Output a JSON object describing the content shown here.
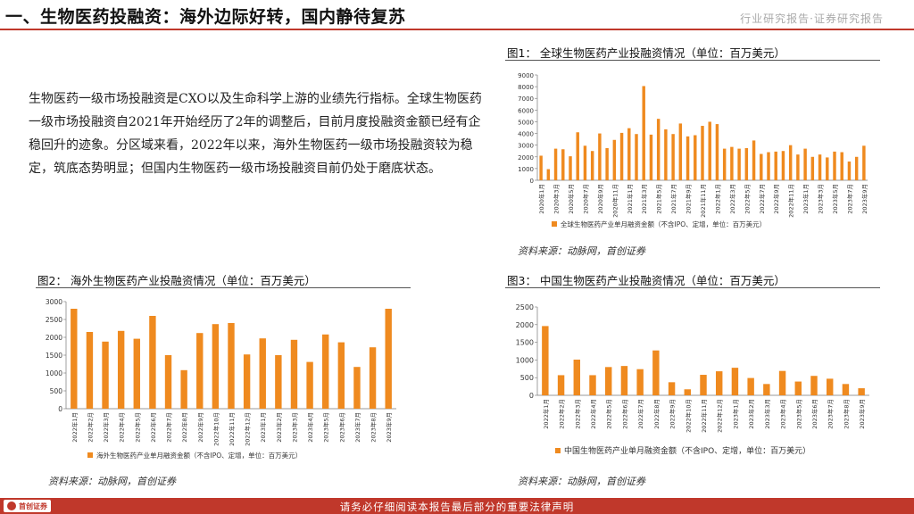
{
  "header": {
    "title": "一、生物医药投融资：海外边际好转，国内静待复苏",
    "right_label": "行业研究报告·证券研究报告"
  },
  "body_text": "生物医药一级市场投融资是CXO以及生命科学上游的业绩先行指标。全球生物医药一级市场投融资自2021年开始经历了2年的调整后，目前月度投融资金额已经有企稳回升的迹象。分区域来看，2022年以来，海外生物医药一级市场投融资较为稳定，筑底态势明显；但国内生物医药一级市场投融资目前仍处于磨底状态。",
  "figures": {
    "fig1": {
      "title": "图1：  全球生物医药产业投融资情况（单位：百万美元）",
      "source": "资料来源：动脉网，首创证券"
    },
    "fig2": {
      "title": "图2：  海外生物医药产业投融资情况（单位：百万美元）",
      "source": "资料来源：动脉网，首创证券"
    },
    "fig3": {
      "title": "图3：  中国生物医药产业投融资情况（单位：百万美元）",
      "source": "资料来源：动脉网，首创证券"
    }
  },
  "footer": {
    "disclaimer": "请务必仔细阅读本报告最后部分的重要法律声明",
    "logo_text": "首创证券"
  },
  "colors": {
    "accent": "#c0382b",
    "bar": "#ef8a1f"
  },
  "chart_data": [
    {
      "id": "fig1",
      "type": "bar",
      "title": "全球生物医药产业投融资情况（单位：百万美元）",
      "legend": "全球生物医药产业单月融资金额（不含IPO、定增，单位：百万美元）",
      "legend_position": "bottom",
      "ylim": [
        0,
        9000
      ],
      "yticks": [
        0,
        1000,
        2000,
        3000,
        4000,
        5000,
        6000,
        7000,
        8000,
        9000
      ],
      "tick_labels": [
        "2020年1月",
        "2020年3月",
        "2020年5月",
        "2020年7月",
        "2020年9月",
        "2020年11月",
        "2021年1月",
        "2021年3月",
        "2021年5月",
        "2021年7月",
        "2021年9月",
        "2021年11月",
        "2022年1月",
        "2022年3月",
        "2022年5月",
        "2022年7月",
        "2022年9月",
        "2022年11月",
        "2023年1月",
        "2023年3月",
        "2023年5月",
        "2023年7月",
        "2023年9月"
      ],
      "values": [
        2100,
        950,
        2700,
        2650,
        2050,
        4100,
        2950,
        2500,
        4000,
        2750,
        3450,
        4050,
        4450,
        3950,
        8050,
        3900,
        5250,
        4350,
        3950,
        4850,
        3750,
        3850,
        4650,
        5000,
        4800,
        2700,
        2850,
        2700,
        2750,
        3400,
        2250,
        2400,
        2450,
        2500,
        3000,
        2200,
        2700,
        2000,
        2200,
        1950,
        2450,
        2400,
        1600,
        2000,
        2950
      ]
    },
    {
      "id": "fig2",
      "type": "bar",
      "title": "海外生物医药产业投融资情况（单位：百万美元）",
      "legend": "海外生物医药产业单月融资金额（不含IPO、定增，单位：百万美元）",
      "legend_position": "bottom",
      "ylim": [
        0,
        3000
      ],
      "yticks": [
        0,
        500,
        1000,
        1500,
        2000,
        2500,
        3000
      ],
      "categories": [
        "2022年1月",
        "2022年2月",
        "2022年3月",
        "2022年4月",
        "2022年5月",
        "2022年6月",
        "2022年7月",
        "2022年8月",
        "2022年9月",
        "2022年10月",
        "2022年11月",
        "2022年12月",
        "2023年1月",
        "2023年2月",
        "2023年3月",
        "2023年4月",
        "2023年5月",
        "2023年6月",
        "2023年7月",
        "2023年8月",
        "2023年9月"
      ],
      "values": [
        2800,
        2150,
        1880,
        2180,
        1960,
        2600,
        1500,
        1080,
        2120,
        2370,
        2400,
        1520,
        1970,
        1500,
        1930,
        1310,
        2080,
        1860,
        1170,
        1720,
        2800
      ]
    },
    {
      "id": "fig3",
      "type": "bar",
      "title": "中国生物医药产业投融资情况（单位：百万美元）",
      "legend": "中国生物医药产业单月融资金额（不含IPO、定增，单位：百万美元）",
      "legend_position": "bottom",
      "ylim": [
        0,
        2500
      ],
      "yticks": [
        0,
        500,
        1000,
        1500,
        2000,
        2500
      ],
      "categories": [
        "2022年1月",
        "2022年2月",
        "2022年3月",
        "2022年4月",
        "2022年5月",
        "2022年6月",
        "2022年7月",
        "2022年8月",
        "2022年9月",
        "2022年10月",
        "2022年11月",
        "2022年12月",
        "2023年1月",
        "2023年2月",
        "2023年3月",
        "2023年4月",
        "2023年5月",
        "2023年6月",
        "2023年7月",
        "2023年8月",
        "2023年9月"
      ],
      "values": [
        1960,
        570,
        1010,
        570,
        800,
        830,
        740,
        1270,
        370,
        170,
        580,
        680,
        780,
        490,
        320,
        690,
        390,
        550,
        470,
        320,
        200
      ]
    }
  ]
}
